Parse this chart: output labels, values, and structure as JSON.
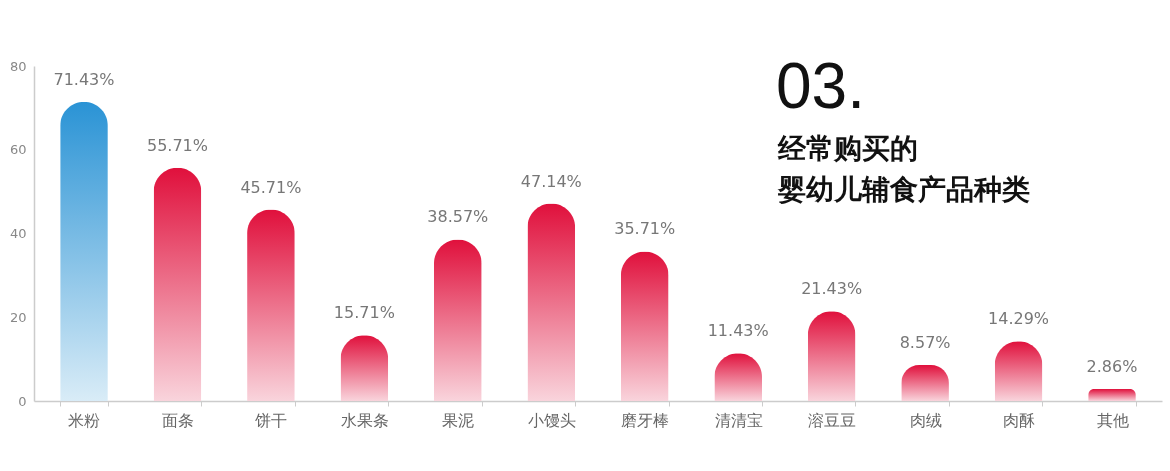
{
  "chart_data": {
    "type": "bar",
    "title": "03.",
    "subtitle": "经常购买的婴幼儿辅食产品种类",
    "categories": [
      "米粉",
      "面条",
      "饼干",
      "水果条",
      "果泥",
      "小馒头",
      "磨牙棒",
      "清清宝",
      "溶豆豆",
      "肉绒",
      "肉酥",
      "其他"
    ],
    "values": [
      71.43,
      55.71,
      45.71,
      15.71,
      38.57,
      47.14,
      35.71,
      11.43,
      21.43,
      8.57,
      14.29,
      2.86
    ],
    "colors": [
      "#2a93d5",
      "#e0103c",
      "#e0103c",
      "#e0103c",
      "#e0103c",
      "#e0103c",
      "#e0103c",
      "#e0103c",
      "#e0103c",
      "#e0103c",
      "#e0103c",
      "#e0103c"
    ],
    "value_labels": [
      "71.43%",
      "55.71%",
      "45.71%",
      "15.71%",
      "38.57%",
      "47.14%",
      "35.71%",
      "11.43%",
      "21.43%",
      "8.57%",
      "14.29%",
      "2.86%"
    ],
    "ylim": [
      0,
      80
    ],
    "yticks": [
      0,
      20,
      40,
      60,
      80
    ]
  }
}
